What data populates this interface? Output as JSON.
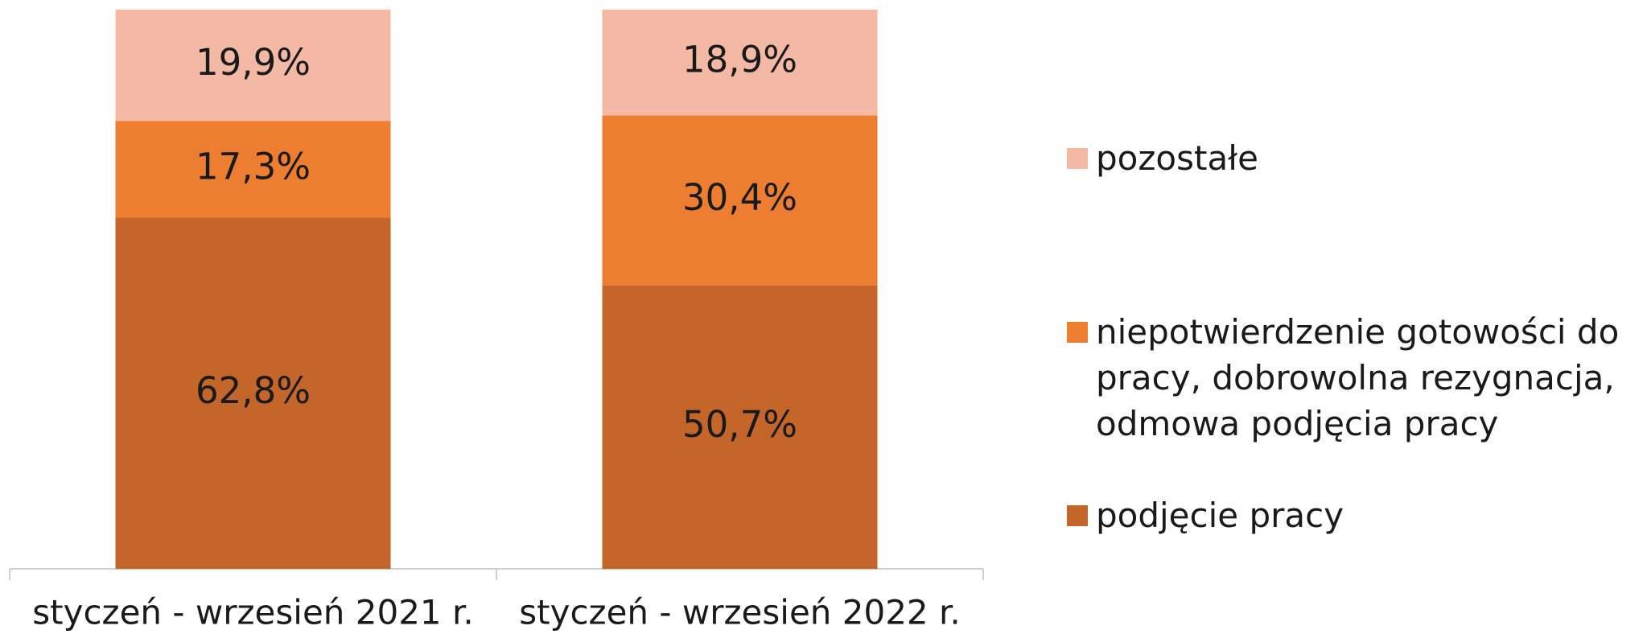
{
  "chart_data": {
    "type": "stacked_bar",
    "categories": [
      "styczeń - wrzesień 2021 r.",
      "styczeń - wrzesień 2022 r."
    ],
    "series": [
      {
        "name": "podjęcie pracy",
        "color": "#c4652a",
        "values": [
          62.8,
          50.7
        ],
        "value_labels": [
          "62,8%",
          "50,7%"
        ]
      },
      {
        "name": "niepotwierdzenie gotowości do pracy, dobrowolna rezygnacja, odmowa podjęcia pracy",
        "color": "#ed7d31",
        "values": [
          17.3,
          30.4
        ],
        "value_labels": [
          "17,3%",
          "30,4%"
        ]
      },
      {
        "name": "pozostałe",
        "color": "#f4b9a5",
        "values": [
          19.9,
          18.9
        ],
        "value_labels": [
          "19,9%",
          "18,9%"
        ]
      }
    ],
    "ylim": [
      0,
      100
    ],
    "legend": "right"
  }
}
